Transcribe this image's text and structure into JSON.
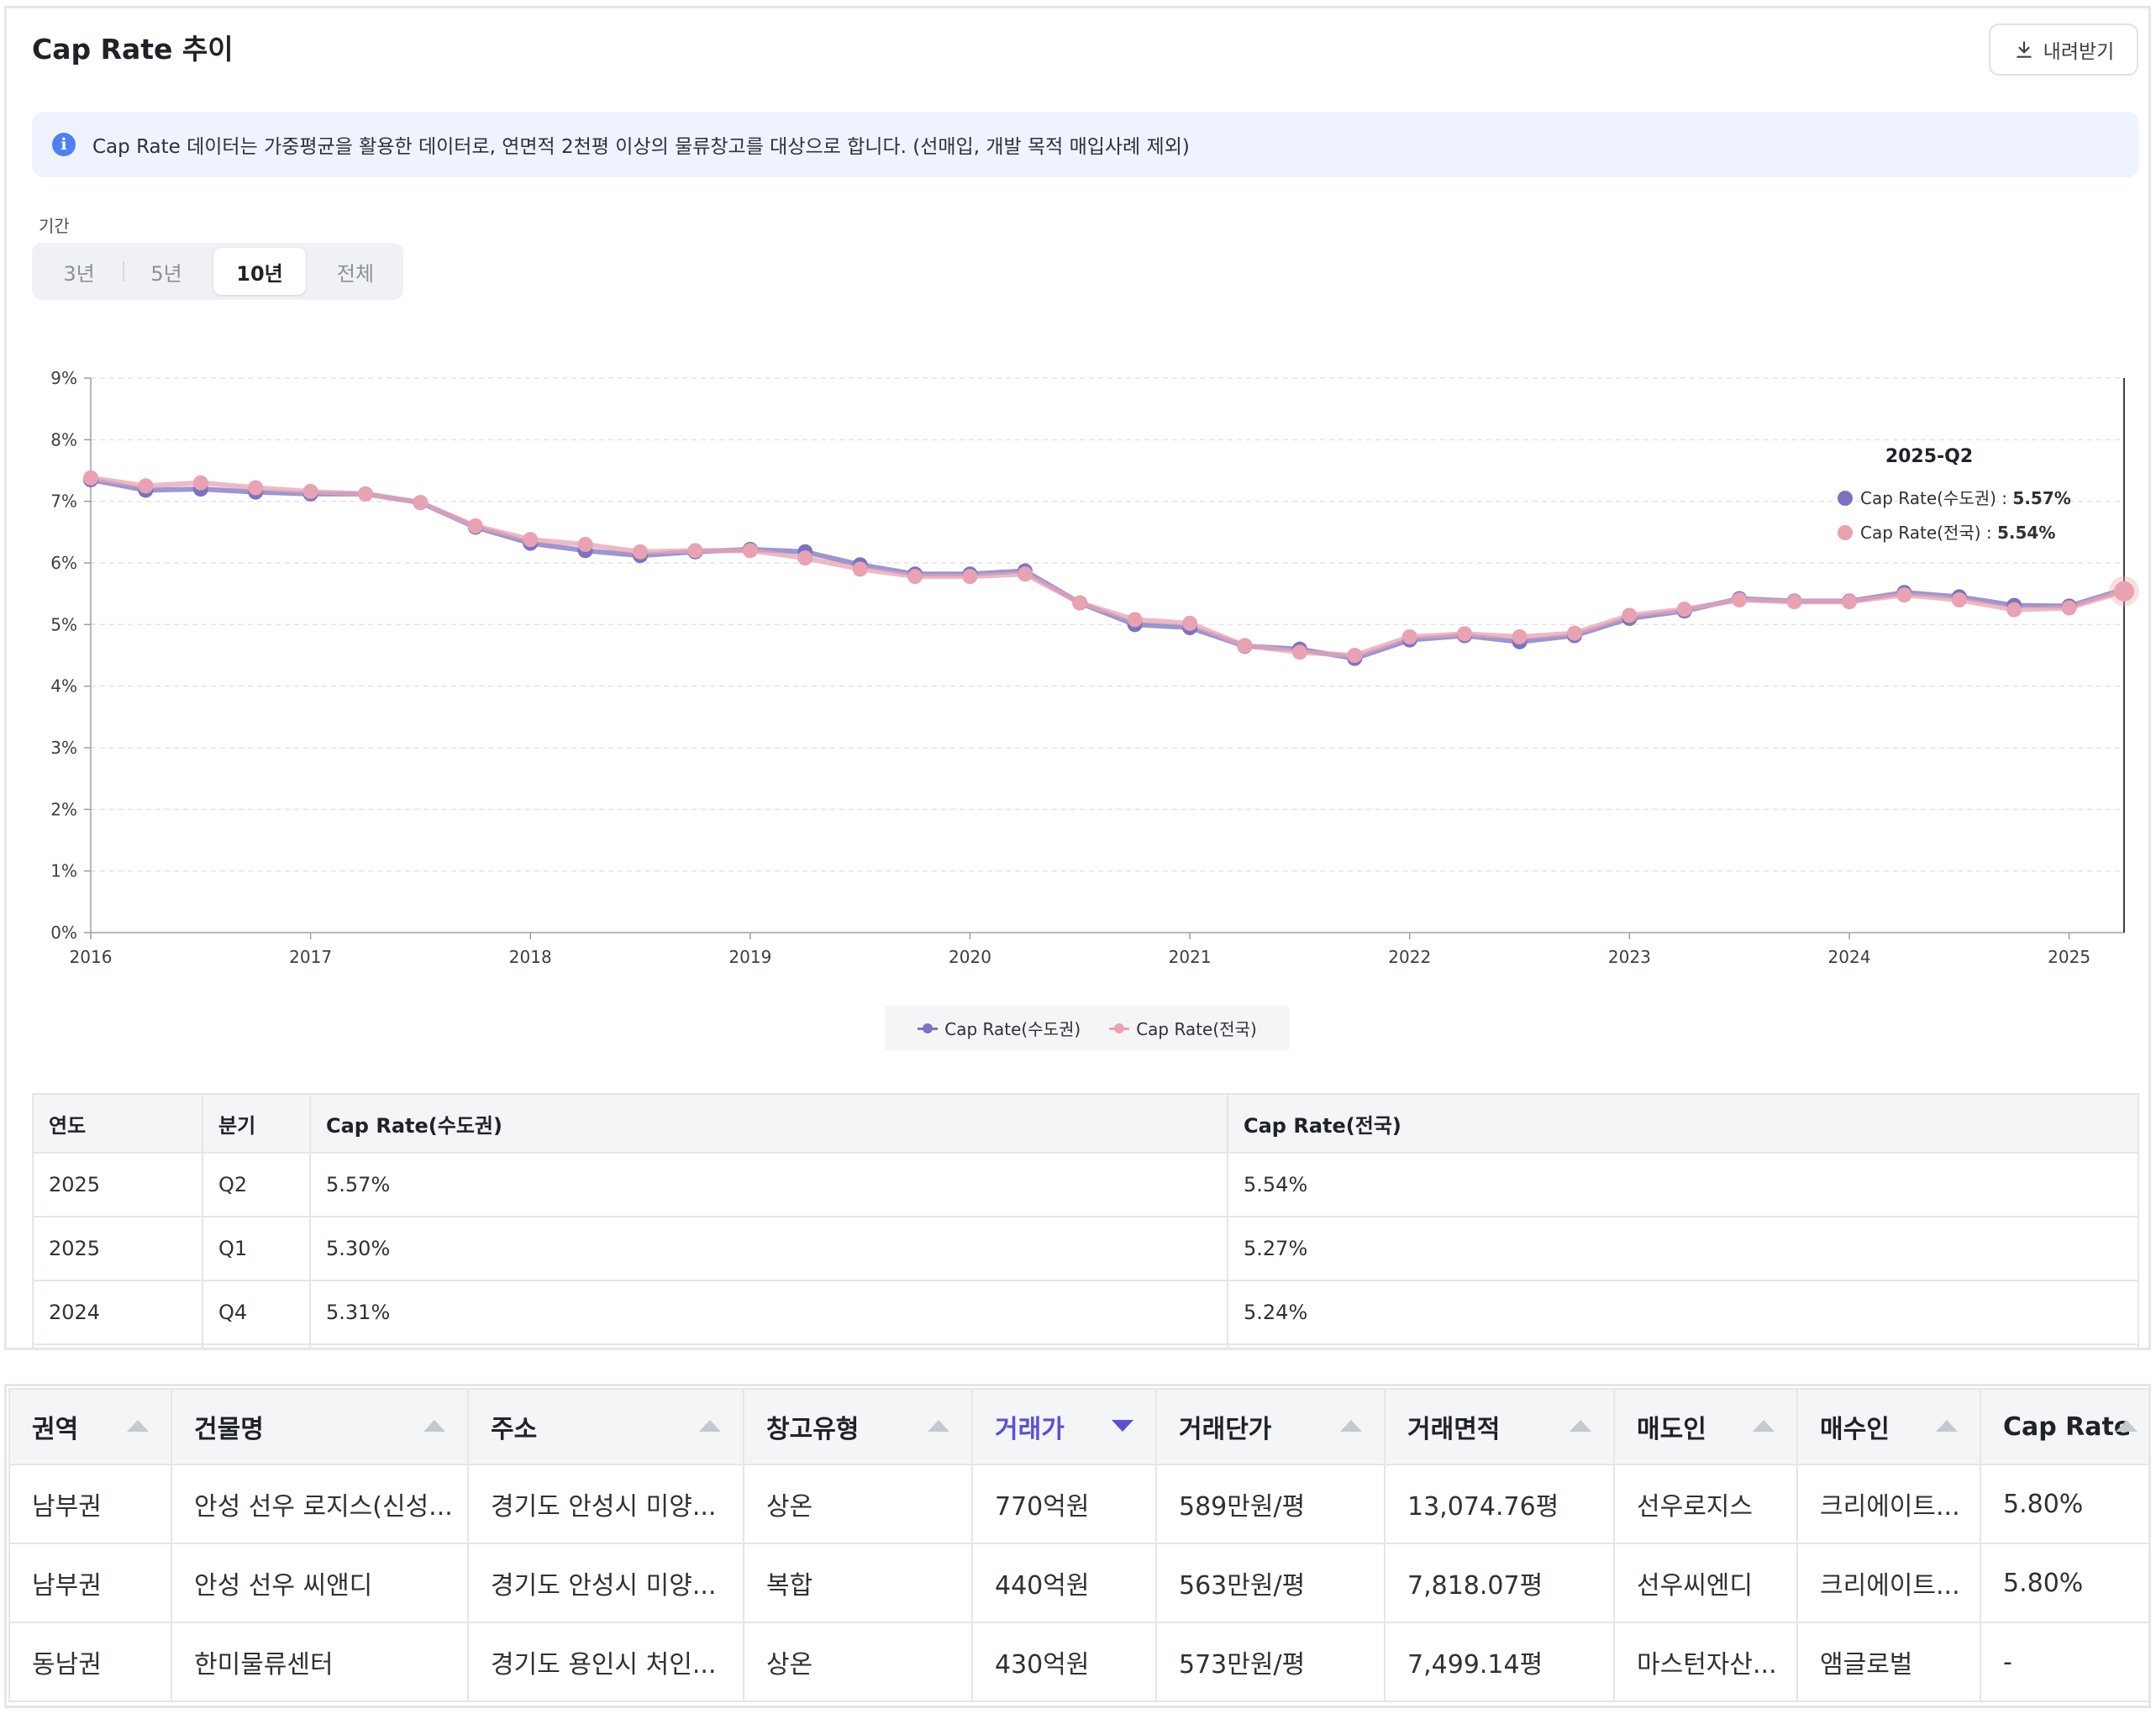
{
  "header": {
    "title": "Cap Rate 추이",
    "download_label": "내려받기"
  },
  "info": {
    "icon": "info-icon",
    "text": "Cap Rate 데이터는 가중평균을 활용한 데이터로, 연면적 2천평 이상의 물류창고를 대상으로 합니다. (선매입, 개발 목적 매입사례 제외)"
  },
  "period": {
    "label": "기간",
    "options": [
      "3년",
      "5년",
      "10년",
      "전체"
    ],
    "selected": "10년"
  },
  "tooltip": {
    "title": "2025-Q2",
    "rows": [
      {
        "label": "Cap Rate(수도권) : ",
        "value": "5.57%",
        "color": "#7b73c2"
      },
      {
        "label": "Cap Rate(전국) : ",
        "value": "5.54%",
        "color": "#e8a2b2"
      }
    ]
  },
  "chart_data": {
    "type": "line",
    "x": [
      "2016-Q1",
      "2016-Q2",
      "2016-Q3",
      "2016-Q4",
      "2017-Q1",
      "2017-Q2",
      "2017-Q3",
      "2017-Q4",
      "2018-Q1",
      "2018-Q2",
      "2018-Q3",
      "2018-Q4",
      "2019-Q1",
      "2019-Q2",
      "2019-Q3",
      "2019-Q4",
      "2020-Q1",
      "2020-Q2",
      "2020-Q3",
      "2020-Q4",
      "2021-Q1",
      "2021-Q2",
      "2021-Q3",
      "2021-Q4",
      "2022-Q1",
      "2022-Q2",
      "2022-Q3",
      "2022-Q4",
      "2023-Q1",
      "2023-Q2",
      "2023-Q3",
      "2023-Q4",
      "2024-Q1",
      "2024-Q2",
      "2024-Q3",
      "2024-Q4",
      "2025-Q1",
      "2025-Q2"
    ],
    "xtick_labels": [
      "2016",
      "2017",
      "2018",
      "2019",
      "2020",
      "2021",
      "2022",
      "2023",
      "2024",
      "2025"
    ],
    "ytick_labels": [
      "0%",
      "1%",
      "2%",
      "3%",
      "4%",
      "5%",
      "6%",
      "7%",
      "8%",
      "9%"
    ],
    "ylim": [
      0,
      9
    ],
    "grid": true,
    "legend_position": "bottom-center",
    "series": [
      {
        "name": "Cap Rate(수도권)",
        "color": "#7b73c2",
        "values": [
          7.35,
          7.18,
          7.2,
          7.15,
          7.12,
          7.12,
          6.98,
          6.58,
          6.32,
          6.2,
          6.12,
          6.18,
          6.22,
          6.18,
          5.97,
          5.82,
          5.82,
          5.87,
          5.35,
          5.0,
          4.95,
          4.65,
          4.6,
          4.45,
          4.75,
          4.82,
          4.72,
          4.82,
          5.1,
          5.22,
          5.42,
          5.38,
          5.38,
          5.52,
          5.45,
          5.31,
          5.3,
          5.57
        ]
      },
      {
        "name": "Cap Rate(전국)",
        "color": "#e8a2b2",
        "values": [
          7.38,
          7.25,
          7.3,
          7.22,
          7.16,
          7.12,
          6.98,
          6.6,
          6.38,
          6.3,
          6.18,
          6.2,
          6.2,
          6.08,
          5.9,
          5.78,
          5.78,
          5.82,
          5.35,
          5.08,
          5.02,
          4.66,
          4.55,
          4.5,
          4.8,
          4.85,
          4.8,
          4.86,
          5.15,
          5.25,
          5.4,
          5.37,
          5.37,
          5.48,
          5.4,
          5.24,
          5.27,
          5.54
        ]
      }
    ]
  },
  "cap_table": {
    "headers": [
      "연도",
      "분기",
      "Cap Rate(수도권)",
      "Cap Rate(전국)"
    ],
    "rows": [
      [
        "2025",
        "Q2",
        "5.57%",
        "5.54%"
      ],
      [
        "2025",
        "Q1",
        "5.30%",
        "5.27%"
      ],
      [
        "2024",
        "Q4",
        "5.31%",
        "5.24%"
      ]
    ]
  },
  "deals_table": {
    "headers": [
      "권역",
      "건물명",
      "주소",
      "창고유형",
      "거래가",
      "거래단가",
      "거래면적",
      "매도인",
      "매수인",
      "Cap Rate"
    ],
    "sorted_column": "거래가",
    "rows": [
      [
        "남부권",
        "안성 선우 로지스(신성...",
        "경기도 안성시 미양...",
        "상온",
        "770억원",
        "589만원/평",
        "13,074.76평",
        "선우로지스",
        "크리에이트...",
        "5.80%"
      ],
      [
        "남부권",
        "안성 선우 씨앤디",
        "경기도 안성시 미양...",
        "복합",
        "440억원",
        "563만원/평",
        "7,818.07평",
        "선우씨엔디",
        "크리에이트...",
        "5.80%"
      ],
      [
        "동남권",
        "한미물류센터",
        "경기도 용인시 처인...",
        "상온",
        "430억원",
        "573만원/평",
        "7,499.14평",
        "마스턴자산...",
        "앰글로벌",
        "-"
      ]
    ]
  }
}
